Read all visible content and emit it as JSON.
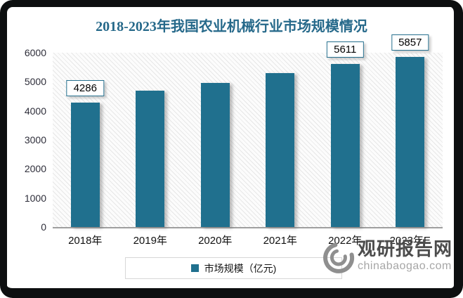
{
  "chart_data": {
    "type": "bar",
    "title": "2018-2023年我国农业机械行业市场规模情况",
    "categories": [
      "2018年",
      "2019年",
      "2020年",
      "2021年",
      "2022年",
      "2023年E"
    ],
    "values": [
      4286,
      4704,
      4950,
      5310,
      5611,
      5857
    ],
    "data_labels": [
      4286,
      null,
      null,
      null,
      5611,
      5857
    ],
    "ylim": [
      0,
      6000
    ],
    "yticks": [
      0,
      1000,
      2000,
      3000,
      4000,
      5000,
      6000
    ],
    "xlabel": "",
    "ylabel": "",
    "legend": [
      "市场规模（亿元)"
    ],
    "legend_position": "bottom",
    "grid": false,
    "plot_background": "diagonal-hatch"
  },
  "legend": {
    "label": "市场规模（亿元)"
  },
  "watermark": {
    "name": "观研报告网",
    "site": "chinabaogao.com"
  },
  "colors": {
    "bar": "#20708e",
    "title": "#26698a",
    "frame": "#0d0f10",
    "label_box_border": "#26708e",
    "axis_line": "#9f9f9f",
    "legend_border": "#d7d7d7",
    "hatch_line": "#e7e7e7",
    "watermark_dark": "#4c4c4c",
    "watermark_light": "#a6a6a6"
  }
}
